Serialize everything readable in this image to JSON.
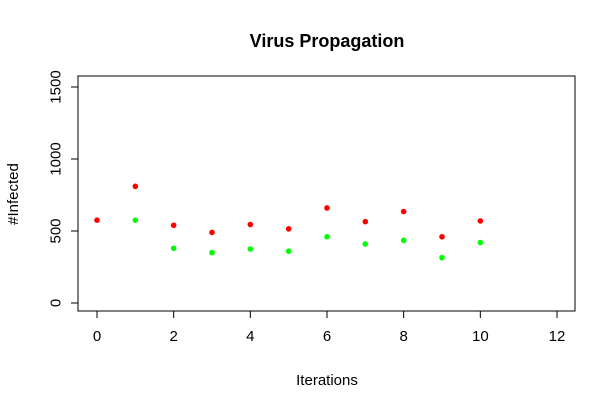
{
  "chart_data": {
    "type": "scatter",
    "title": "Virus Propagation",
    "xlabel": "Iterations",
    "ylabel": "#Infected",
    "xlim": [
      0,
      12
    ],
    "ylim": [
      0,
      1500
    ],
    "xticks": [
      "0",
      "2",
      "4",
      "6",
      "8",
      "10",
      "12"
    ],
    "yticks": [
      "0",
      "500",
      "1000",
      "1500"
    ],
    "grid": false,
    "legend": "none",
    "series": [
      {
        "color": "#ff0000",
        "x": [
          0,
          1,
          2,
          3,
          4,
          5,
          6,
          7,
          8,
          9,
          10
        ],
        "y": [
          575,
          810,
          540,
          490,
          545,
          515,
          660,
          565,
          635,
          460,
          570
        ]
      },
      {
        "color": "#00ff00",
        "x": [
          1,
          2,
          3,
          4,
          5,
          6,
          7,
          8,
          9,
          10
        ],
        "y": [
          575,
          380,
          350,
          375,
          360,
          460,
          410,
          435,
          315,
          420
        ]
      }
    ]
  }
}
